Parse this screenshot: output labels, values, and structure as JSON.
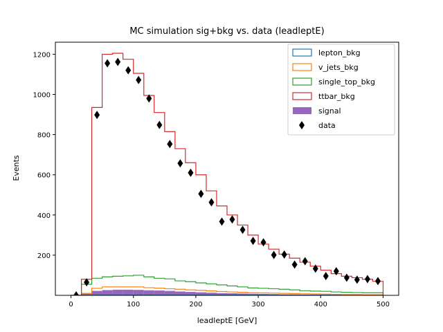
{
  "chart_data": {
    "type": "histogram",
    "title": "MC simulation sig+bkg vs. data (leadleptE)",
    "xlabel": "leadleptE [GeV]",
    "ylabel": "Events",
    "xlim": [
      -25,
      525
    ],
    "ylim": [
      0,
      1260
    ],
    "xticks": [
      0,
      100,
      200,
      300,
      400,
      500
    ],
    "yticks": [
      200,
      400,
      600,
      800,
      1000,
      1200
    ],
    "grid": false,
    "legend_position": "top-right",
    "bin_edges": [
      0,
      16.7,
      33.3,
      50,
      66.7,
      83.3,
      100,
      116.7,
      133.3,
      150,
      166.7,
      183.3,
      200,
      216.7,
      233.3,
      250,
      266.7,
      283.3,
      300,
      316.7,
      333.3,
      350,
      366.7,
      383.3,
      400,
      416.7,
      433.3,
      450,
      466.7,
      483.3,
      500
    ],
    "series": [
      {
        "name": "lepton_bkg",
        "style": "step",
        "color": "#1f77b4",
        "values": [
          0,
          0,
          1,
          1,
          1,
          1,
          1,
          1,
          1,
          1,
          1,
          1,
          1,
          1,
          1,
          1,
          1,
          1,
          1,
          1,
          1,
          1,
          1,
          1,
          1,
          0,
          0,
          0,
          0,
          0
        ]
      },
      {
        "name": "v_jets_bkg",
        "style": "step",
        "color": "#ff7f0e",
        "values": [
          0,
          10,
          35,
          42,
          42,
          42,
          42,
          38,
          36,
          33,
          30,
          27,
          25,
          22,
          19,
          17,
          15,
          13,
          12,
          11,
          10,
          9,
          8,
          7,
          6,
          5,
          4,
          4,
          3,
          3
        ]
      },
      {
        "name": "single_top_bkg",
        "style": "step",
        "color": "#2ca02c",
        "values": [
          0,
          55,
          85,
          92,
          95,
          97,
          100,
          92,
          85,
          82,
          72,
          68,
          62,
          57,
          52,
          47,
          42,
          37,
          35,
          33,
          30,
          27,
          23,
          21,
          20,
          17,
          15,
          14,
          13,
          13
        ]
      },
      {
        "name": "ttbar_bkg",
        "style": "step",
        "color": "#d62728",
        "values": [
          0,
          80,
          935,
          1200,
          1205,
          1175,
          1105,
          995,
          910,
          815,
          730,
          660,
          600,
          520,
          445,
          400,
          350,
          300,
          255,
          230,
          205,
          185,
          165,
          145,
          125,
          108,
          95,
          88,
          80,
          70
        ]
      },
      {
        "name": "signal",
        "style": "filled",
        "color": "#9467bd",
        "values": [
          0,
          8,
          22,
          26,
          28,
          28,
          27,
          25,
          24,
          22,
          19,
          17,
          15,
          13,
          11,
          10,
          9,
          8,
          7,
          6,
          5,
          5,
          4,
          4,
          3,
          3,
          2,
          2,
          2,
          2
        ]
      },
      {
        "name": "data",
        "style": "points",
        "color": "#000000",
        "x": [
          8.3,
          25,
          41.7,
          58.3,
          75,
          91.7,
          108.3,
          125,
          141.7,
          158.3,
          175,
          191.7,
          208.3,
          225,
          241.7,
          258.3,
          275,
          291.7,
          308.3,
          325,
          341.7,
          358.3,
          375,
          391.7,
          408.3,
          425,
          441.7,
          458.3,
          475,
          491.7
        ],
        "y": [
          0,
          65,
          898,
          1155,
          1162,
          1120,
          1072,
          980,
          848,
          753,
          657,
          610,
          505,
          463,
          367,
          378,
          326,
          271,
          264,
          201,
          203,
          153,
          170,
          133,
          96,
          120,
          88,
          78,
          81,
          71
        ]
      }
    ]
  }
}
